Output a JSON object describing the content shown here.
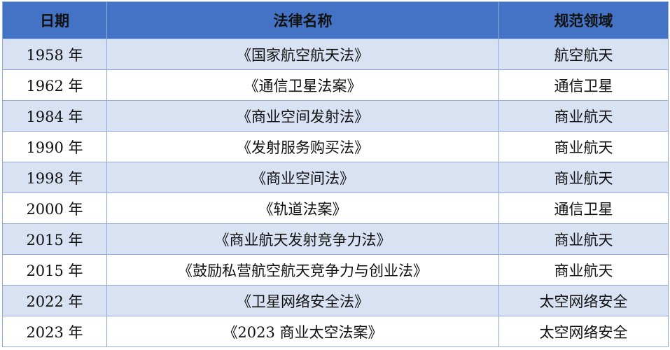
{
  "colors": {
    "header_bg": "#4472C4",
    "band_bg": "#D9E2F3",
    "border": "#8EAADB"
  },
  "headers": [
    "日期",
    "法律名称",
    "规范领域"
  ],
  "rows": [
    [
      "1958 年",
      "《国家航空航天法》",
      "航空航天"
    ],
    [
      "1962 年",
      "《通信卫星法案》",
      "通信卫星"
    ],
    [
      "1984 年",
      "《商业空间发射法》",
      "商业航天"
    ],
    [
      "1990 年",
      "《发射服务购买法》",
      "商业航天"
    ],
    [
      "1998 年",
      "《商业空间法》",
      "商业航天"
    ],
    [
      "2000 年",
      "《轨道法案》",
      "通信卫星"
    ],
    [
      "2015 年",
      "《商业航天发射竞争力法》",
      "商业航天"
    ],
    [
      "2015 年",
      "《鼓励私营航空航天竞争力与创业法》",
      "商业航天"
    ],
    [
      "2022 年",
      "《卫星网络安全法》",
      "太空网络安全"
    ],
    [
      "2023 年",
      "《2023 商业太空法案》",
      "太空网络安全"
    ]
  ]
}
